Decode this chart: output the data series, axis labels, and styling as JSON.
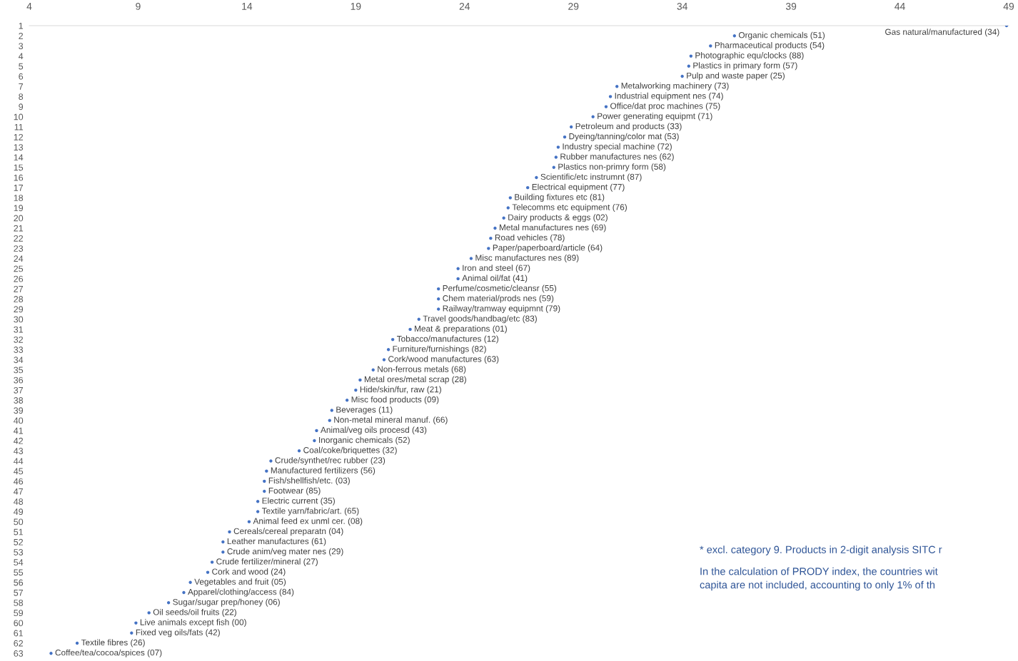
{
  "chart_data": {
    "type": "scatter",
    "orientation": "horizontal",
    "color": "#4472c4",
    "marker": "circle",
    "grid": false,
    "legend": false,
    "categories": [
      "1",
      "2",
      "3",
      "4",
      "5",
      "6",
      "7",
      "8",
      "9",
      "10",
      "11",
      "12",
      "13",
      "14",
      "15",
      "16",
      "17",
      "18",
      "19",
      "20",
      "21",
      "22",
      "23",
      "24",
      "25",
      "26",
      "27",
      "28",
      "29",
      "30",
      "31",
      "32",
      "33",
      "34",
      "35",
      "36",
      "37",
      "38",
      "39",
      "40",
      "41",
      "42",
      "43",
      "44",
      "45",
      "46",
      "47",
      "48",
      "49",
      "50",
      "51",
      "52",
      "53",
      "54",
      "55",
      "56",
      "57",
      "58",
      "59",
      "60",
      "61",
      "62",
      "63"
    ],
    "values": [
      48.9,
      36.4,
      35.3,
      34.4,
      34.3,
      34.0,
      31.0,
      30.7,
      30.5,
      29.9,
      28.9,
      28.6,
      28.3,
      28.2,
      28.1,
      27.3,
      26.9,
      26.1,
      26.0,
      25.8,
      25.4,
      25.2,
      25.1,
      24.3,
      23.7,
      23.7,
      22.8,
      22.8,
      22.8,
      21.9,
      21.5,
      20.7,
      20.5,
      20.3,
      19.8,
      19.2,
      19.0,
      18.6,
      17.9,
      17.8,
      17.2,
      17.1,
      16.4,
      15.1,
      14.9,
      14.8,
      14.8,
      14.5,
      14.5,
      14.1,
      13.2,
      12.9,
      12.9,
      12.4,
      12.2,
      11.4,
      11.1,
      10.4,
      9.5,
      8.9,
      8.7,
      6.2,
      5.0
    ],
    "xlim": [
      4,
      49
    ],
    "xticks": [
      4,
      9,
      14,
      19,
      24,
      29,
      34,
      39,
      44,
      49
    ],
    "annotations": [
      {
        "text": "Gas natural/manufactured (34)",
        "x": 48.9,
        "y": "1"
      },
      {
        "text": "Organic chemicals (51)",
        "x": 36.4,
        "y": "2"
      },
      {
        "text": "Pharmaceutical products (54)",
        "x": 35.3,
        "y": "3"
      },
      {
        "text": "Photographic equ/clocks (88)",
        "x": 34.4,
        "y": "4"
      },
      {
        "text": "Plastics in primary form (57)",
        "x": 34.3,
        "y": "5"
      },
      {
        "text": "Pulp and waste paper (25)",
        "x": 34.0,
        "y": "6"
      },
      {
        "text": "Metalworking machinery (73)",
        "x": 31.0,
        "y": "7"
      },
      {
        "text": "Industrial equipment nes (74)",
        "x": 30.7,
        "y": "8"
      },
      {
        "text": "Office/dat proc machines (75)",
        "x": 30.5,
        "y": "9"
      },
      {
        "text": "Power generating equipmt (71)",
        "x": 29.9,
        "y": "10"
      },
      {
        "text": "Petroleum and products (33)",
        "x": 28.9,
        "y": "11"
      },
      {
        "text": "Dyeing/tanning/color mat (53)",
        "x": 28.6,
        "y": "12"
      },
      {
        "text": "Industry special machine (72)",
        "x": 28.3,
        "y": "13"
      },
      {
        "text": "Rubber manufactures nes (62)",
        "x": 28.2,
        "y": "14"
      },
      {
        "text": "Plastics non-primry form (58)",
        "x": 28.1,
        "y": "15"
      },
      {
        "text": "Scientific/etc instrumnt (87)",
        "x": 27.3,
        "y": "16"
      },
      {
        "text": "Electrical equipment (77)",
        "x": 26.9,
        "y": "17"
      },
      {
        "text": "Building fixtures etc (81)",
        "x": 26.1,
        "y": "18"
      },
      {
        "text": "Telecomms etc equipment (76)",
        "x": 26.0,
        "y": "19"
      },
      {
        "text": "Dairy products & eggs (02)",
        "x": 25.8,
        "y": "20"
      },
      {
        "text": "Metal manufactures nes (69)",
        "x": 25.4,
        "y": "21"
      },
      {
        "text": "Road vehicles (78)",
        "x": 25.2,
        "y": "22"
      },
      {
        "text": "Paper/paperboard/article (64)",
        "x": 25.1,
        "y": "23"
      },
      {
        "text": "Misc manufactures nes (89)",
        "x": 24.3,
        "y": "24"
      },
      {
        "text": "Iron and steel (67)",
        "x": 23.7,
        "y": "25"
      },
      {
        "text": "Animal oil/fat (41)",
        "x": 23.7,
        "y": "26"
      },
      {
        "text": "Perfume/cosmetic/cleansr (55)",
        "x": 22.8,
        "y": "27"
      },
      {
        "text": "Chem material/prods nes (59)",
        "x": 22.8,
        "y": "28"
      },
      {
        "text": "Railway/tramway equipmnt (79)",
        "x": 22.8,
        "y": "29"
      },
      {
        "text": "Travel goods/handbag/etc (83)",
        "x": 21.9,
        "y": "30"
      },
      {
        "text": "Meat & preparations (01)",
        "x": 21.5,
        "y": "31"
      },
      {
        "text": "Tobacco/manufactures (12)",
        "x": 20.7,
        "y": "32"
      },
      {
        "text": "Furniture/furnishings (82)",
        "x": 20.5,
        "y": "33"
      },
      {
        "text": "Cork/wood manufactures (63)",
        "x": 20.3,
        "y": "34"
      },
      {
        "text": "Non-ferrous metals (68)",
        "x": 19.8,
        "y": "35"
      },
      {
        "text": "Metal ores/metal scrap (28)",
        "x": 19.2,
        "y": "36"
      },
      {
        "text": "Hide/skin/fur, raw (21)",
        "x": 19.0,
        "y": "37"
      },
      {
        "text": "Misc food products (09)",
        "x": 18.6,
        "y": "38"
      },
      {
        "text": "Beverages (11)",
        "x": 17.9,
        "y": "39"
      },
      {
        "text": "Non-metal mineral manuf. (66)",
        "x": 17.8,
        "y": "40"
      },
      {
        "text": "Animal/veg oils procesd (43)",
        "x": 17.2,
        "y": "41"
      },
      {
        "text": "Inorganic chemicals (52)",
        "x": 17.1,
        "y": "42"
      },
      {
        "text": "Coal/coke/briquettes (32)",
        "x": 16.4,
        "y": "43"
      },
      {
        "text": "Crude/synthet/rec rubber (23)",
        "x": 15.1,
        "y": "44"
      },
      {
        "text": "Manufactured fertilizers (56)",
        "x": 14.9,
        "y": "45"
      },
      {
        "text": "Fish/shellfish/etc. (03)",
        "x": 14.8,
        "y": "46"
      },
      {
        "text": "Footwear (85)",
        "x": 14.8,
        "y": "47"
      },
      {
        "text": "Electric current (35)",
        "x": 14.5,
        "y": "48"
      },
      {
        "text": "Textile yarn/fabric/art. (65)",
        "x": 14.5,
        "y": "49"
      },
      {
        "text": "Animal feed ex unml cer. (08)",
        "x": 14.1,
        "y": "50"
      },
      {
        "text": "Cereals/cereal preparatn (04)",
        "x": 13.2,
        "y": "51"
      },
      {
        "text": "Leather manufactures (61)",
        "x": 12.9,
        "y": "52"
      },
      {
        "text": "Crude anim/veg mater nes (29)",
        "x": 12.9,
        "y": "53"
      },
      {
        "text": "Crude fertilizer/mineral (27)",
        "x": 12.4,
        "y": "54"
      },
      {
        "text": "Cork and wood (24)",
        "x": 12.2,
        "y": "55"
      },
      {
        "text": "Vegetables and fruit (05)",
        "x": 11.4,
        "y": "56"
      },
      {
        "text": "Apparel/clothing/access (84)",
        "x": 11.1,
        "y": "57"
      },
      {
        "text": "Sugar/sugar prep/honey (06)",
        "x": 10.4,
        "y": "58"
      },
      {
        "text": "Oil seeds/oil fruits (22)",
        "x": 9.5,
        "y": "59"
      },
      {
        "text": "Live animals except fish (00)",
        "x": 8.9,
        "y": "60"
      },
      {
        "text": "Fixed veg oils/fats (42)",
        "x": 8.7,
        "y": "61"
      },
      {
        "text": "Textile fibres (26)",
        "x": 6.2,
        "y": "62"
      },
      {
        "text": "Coffee/tea/cocoa/spices (07)",
        "x": 5.0,
        "y": "63"
      },
      "* excl. category 9. Products in 2-digit analysis SITC r",
      "In the calculation of PRODY index, the countries wit\ncapita are not included, accounting to only 1% of th"
    ]
  }
}
